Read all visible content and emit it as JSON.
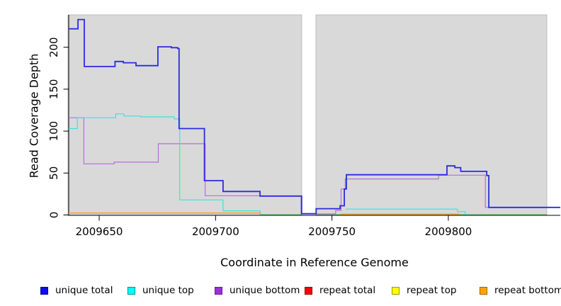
{
  "chart_data": {
    "type": "line",
    "title": "",
    "xlabel": "Coordinate in Reference Genome",
    "ylabel": "Read Coverage Depth",
    "xlim": [
      2009636.9,
      2009848.1
    ],
    "ylim": [
      0,
      238.6
    ],
    "x_ticks": [
      2009650,
      2009700,
      2009750,
      2009800
    ],
    "y_ticks": [
      0,
      50,
      100,
      150,
      200
    ],
    "grid": false,
    "legend_position": "bottom",
    "region_fill": "#d9d9d9",
    "region_border": "#bdbdbd",
    "coverage_regions": [
      {
        "x0": 2009636.6,
        "x1": 2009737.0
      },
      {
        "x0": 2009743.1,
        "x1": 2009842.3
      }
    ],
    "gap_region": {
      "x0": 2009737.0,
      "x1": 2009743.1
    },
    "series": [
      {
        "name": "baseline-unlabeled",
        "label": null,
        "color": "#7cc87c",
        "width": 1.2,
        "segments": [
          [
            [
              2009719.4,
              0.5
            ],
            [
              2009737.0,
              0.5
            ]
          ],
          [
            [
              2009743.2,
              0.5
            ],
            [
              2009842.3,
              0.5
            ]
          ]
        ]
      },
      {
        "name": "repeat-bottom",
        "label": "repeat bottom",
        "color": "#ff9b26",
        "width": 1.5,
        "segments": [
          [
            [
              2009636.9,
              2.3
            ],
            [
              2009719.2,
              2.3
            ],
            [
              2009719.2,
              0.2
            ]
          ],
          [
            [
              2009753.7,
              1.0
            ],
            [
              2009804.8,
              1.0
            ]
          ]
        ]
      },
      {
        "name": "repeat-total",
        "label": "repeat total",
        "color": "#e8242c",
        "width": 1.2,
        "segments": []
      },
      {
        "name": "repeat-top",
        "label": "repeat top",
        "color": "#ffff00",
        "width": 1.2,
        "segments": []
      },
      {
        "name": "unique-bottom",
        "label": "unique bottom",
        "color": "#b46fd8",
        "width": 1.2,
        "segments": [
          [
            [
              2009636.9,
              116
            ],
            [
              2009643.4,
              116
            ],
            [
              2009643.4,
              61
            ],
            [
              2009656.4,
              61
            ],
            [
              2009656.4,
              63
            ],
            [
              2009675.4,
              63
            ],
            [
              2009675.4,
              85
            ],
            [
              2009695.5,
              85
            ],
            [
              2009695.5,
              23
            ],
            [
              2009737.1,
              23
            ],
            [
              2009737.1,
              1.3
            ],
            [
              2009751.6,
              1.3
            ],
            [
              2009751.6,
              5.5
            ],
            [
              2009753.9,
              5.5
            ],
            [
              2009753.9,
              31
            ],
            [
              2009755.7,
              31
            ],
            [
              2009755.7,
              43
            ],
            [
              2009795.8,
              43
            ],
            [
              2009795.8,
              47.5
            ],
            [
              2009815.9,
              47.5
            ],
            [
              2009815.9,
              9
            ],
            [
              2009848.1,
              9
            ]
          ]
        ]
      },
      {
        "name": "unique-top",
        "label": "unique top",
        "color": "#3ce1e1",
        "width": 1.2,
        "segments": [
          [
            [
              2009636.9,
              103
            ],
            [
              2009640.6,
              103
            ],
            [
              2009640.6,
              116
            ],
            [
              2009657.1,
              116
            ],
            [
              2009657.1,
              120.5
            ],
            [
              2009660.7,
              120.5
            ],
            [
              2009660.7,
              118
            ],
            [
              2009667.9,
              118
            ],
            [
              2009667.9,
              117
            ],
            [
              2009682.2,
              117
            ],
            [
              2009682.2,
              114.5
            ],
            [
              2009684.6,
              114.5
            ],
            [
              2009684.6,
              18
            ],
            [
              2009703.2,
              18
            ],
            [
              2009703.2,
              5
            ],
            [
              2009719.1,
              5
            ],
            [
              2009719.1,
              0.8
            ]
          ],
          [
            [
              2009755.9,
              7
            ],
            [
              2009803.9,
              7
            ],
            [
              2009803.9,
              4
            ],
            [
              2009807.3,
              4
            ],
            [
              2009807.3,
              0.8
            ]
          ]
        ]
      },
      {
        "name": "unique-total",
        "label": "unique total",
        "color": "#2b2be2",
        "width": 1.8,
        "segments": [
          [
            [
              2009636.9,
              222
            ],
            [
              2009640.9,
              222
            ],
            [
              2009640.9,
              233
            ],
            [
              2009643.6,
              233
            ],
            [
              2009643.6,
              177
            ],
            [
              2009656.8,
              177
            ],
            [
              2009656.8,
              183
            ],
            [
              2009660.4,
              183
            ],
            [
              2009660.4,
              181.5
            ],
            [
              2009665.8,
              181.5
            ],
            [
              2009665.8,
              178
            ],
            [
              2009675.2,
              178
            ],
            [
              2009675.2,
              200.5
            ],
            [
              2009681.0,
              200.5
            ],
            [
              2009681.0,
              199.5
            ],
            [
              2009683.7,
              199.5
            ],
            [
              2009683.7,
              198.5
            ],
            [
              2009684.3,
              198.5
            ],
            [
              2009684.3,
              103
            ],
            [
              2009695.2,
              103
            ],
            [
              2009695.2,
              41
            ],
            [
              2009703.2,
              41
            ],
            [
              2009703.2,
              28
            ],
            [
              2009719.1,
              28
            ],
            [
              2009719.1,
              22.5
            ],
            [
              2009736.9,
              22.5
            ],
            [
              2009736.9,
              1.5
            ],
            [
              2009743.2,
              1.5
            ],
            [
              2009743.2,
              7.5
            ],
            [
              2009753.5,
              7.5
            ],
            [
              2009753.5,
              11
            ],
            [
              2009755.3,
              11
            ],
            [
              2009755.3,
              31
            ],
            [
              2009756.2,
              31
            ],
            [
              2009756.2,
              48
            ],
            [
              2009799.4,
              48
            ],
            [
              2009799.4,
              58.5
            ],
            [
              2009802.8,
              58.5
            ],
            [
              2009802.8,
              56.5
            ],
            [
              2009805.3,
              56.5
            ],
            [
              2009805.3,
              52
            ],
            [
              2009816.5,
              52
            ],
            [
              2009816.5,
              47
            ],
            [
              2009817.4,
              47
            ],
            [
              2009817.4,
              9
            ],
            [
              2009848.1,
              9
            ]
          ]
        ]
      }
    ]
  },
  "legend": {
    "items": [
      {
        "label": "unique total",
        "fill": "#0d0de8",
        "border": "#0000b0"
      },
      {
        "label": "unique top",
        "fill": "#00ffff",
        "border": "#009090"
      },
      {
        "label": "unique bottom",
        "fill": "#9b2fd8",
        "border": "#6a1b9a"
      },
      {
        "label": "repeat total",
        "fill": "#ff0000",
        "border": "#990000"
      },
      {
        "label": "repeat top",
        "fill": "#ffff00",
        "border": "#999900"
      },
      {
        "label": "repeat bottom",
        "fill": "#ffa500",
        "border": "#a06000"
      }
    ]
  }
}
